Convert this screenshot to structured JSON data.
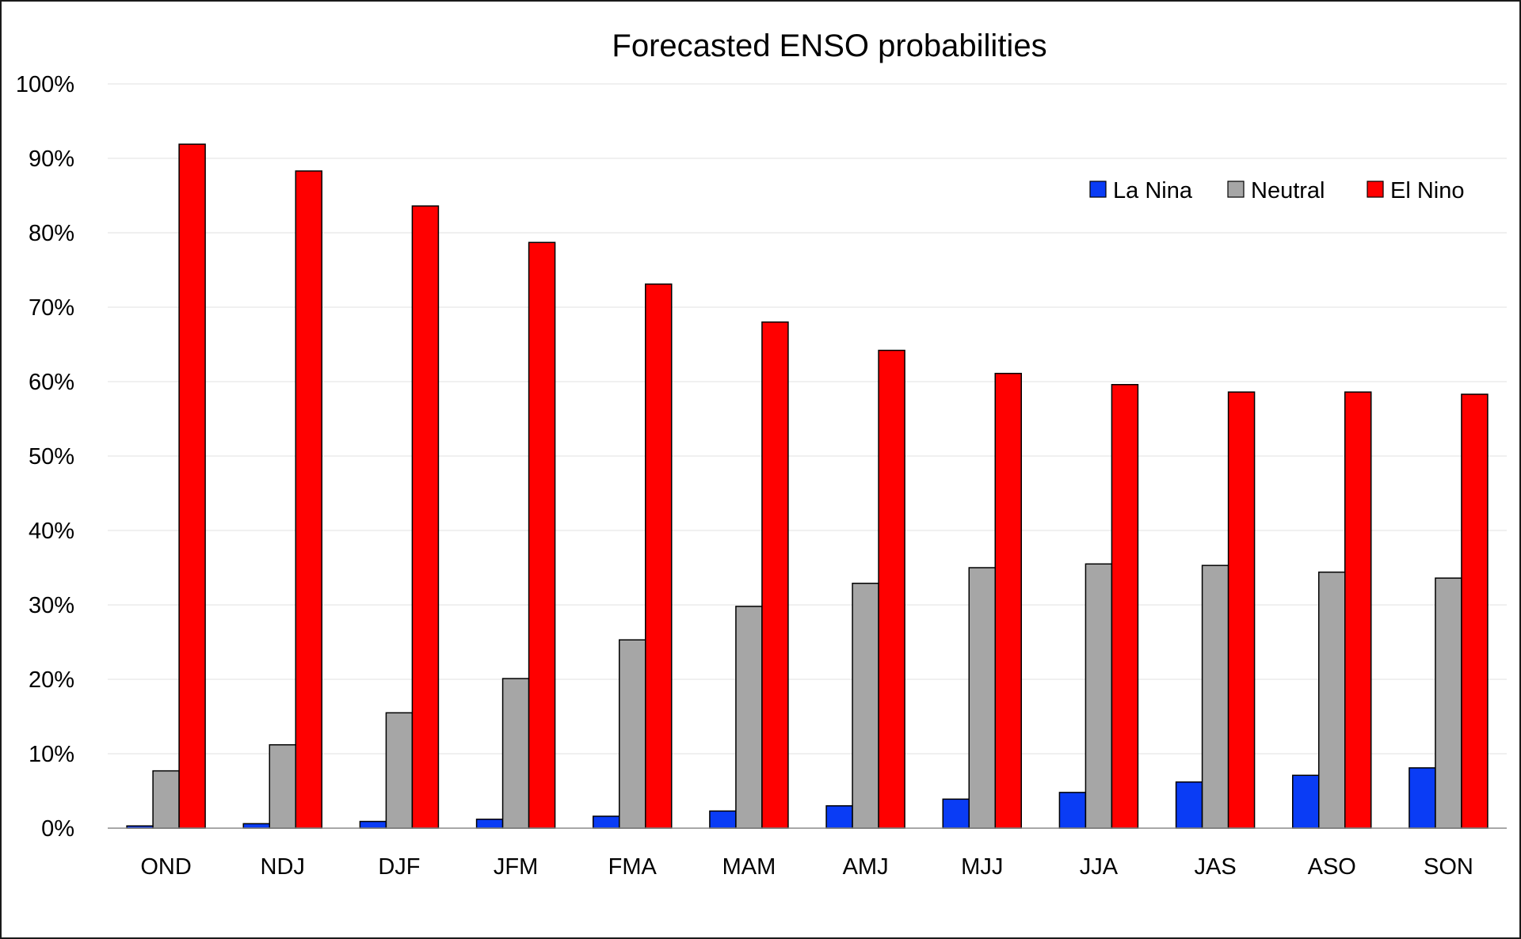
{
  "chart_data": {
    "type": "bar",
    "title": "Forecasted ENSO probabilities",
    "xlabel": "",
    "ylabel": "",
    "categories": [
      "OND",
      "NDJ",
      "DJF",
      "JFM",
      "FMA",
      "MAM",
      "AMJ",
      "MJJ",
      "JJA",
      "JAS",
      "ASO",
      "SON"
    ],
    "series": [
      {
        "name": "La Nina",
        "color": "#0a3cf5",
        "values": [
          0.3,
          0.6,
          0.9,
          1.2,
          1.6,
          2.3,
          3.0,
          3.9,
          4.8,
          6.2,
          7.1,
          8.1
        ]
      },
      {
        "name": "Neutral",
        "color": "#a6a6a6",
        "values": [
          7.7,
          11.2,
          15.5,
          20.1,
          25.3,
          29.8,
          32.9,
          35.0,
          35.5,
          35.3,
          34.4,
          33.6
        ]
      },
      {
        "name": "El Nino",
        "color": "#ff0000",
        "values": [
          91.9,
          88.3,
          83.6,
          78.7,
          73.1,
          68.0,
          64.2,
          61.1,
          59.6,
          58.6,
          58.6,
          58.3
        ]
      }
    ],
    "ylim": [
      0,
      100
    ],
    "yticks": [
      "0%",
      "10%",
      "20%",
      "30%",
      "40%",
      "50%",
      "60%",
      "70%",
      "80%",
      "90%",
      "100%"
    ],
    "grid": "horizontal",
    "legend_position": "top-right"
  }
}
